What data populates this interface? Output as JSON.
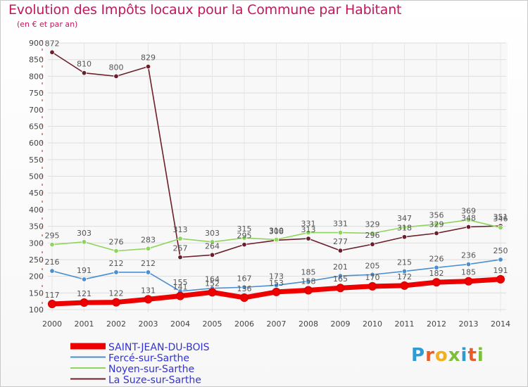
{
  "title": "Evolution des Impôts locaux pour la Commune par Habitant",
  "subtitle": "(en € et par an)",
  "logo": {
    "text": "Proxiti",
    "colors": [
      "#2e9bd6",
      "#e85b2a",
      "#f2b01e",
      "#7bbf3a",
      "#2e9bd6",
      "#e85b2a",
      "#7bbf3a"
    ]
  },
  "chart_data": {
    "type": "line",
    "title": "Evolution des Impôts locaux pour la Commune par Habitant",
    "subtitle": "(en € et par an)",
    "xlabel": "",
    "ylabel": "",
    "x": [
      "2000",
      "2001",
      "2002",
      "2003",
      "2004",
      "2005",
      "2006",
      "2007",
      "2008",
      "2009",
      "2010",
      "2011",
      "2012",
      "2013",
      "2014"
    ],
    "ylim": [
      100,
      900
    ],
    "yticks": [
      "100",
      "150",
      "200",
      "250",
      "300",
      "350",
      "400",
      "450",
      "500",
      "550",
      "600",
      "650",
      "700",
      "750",
      "800",
      "850",
      "900"
    ],
    "grid": true,
    "legend_position": "bottom-left",
    "series": [
      {
        "name": "SAINT-JEAN-DU-BOIS",
        "color": "#ee0000",
        "values": [
          117,
          121,
          122,
          131,
          141,
          152,
          136,
          153,
          158,
          165,
          170,
          172,
          182,
          185,
          191
        ]
      },
      {
        "name": "Fercé-sur-Sarthe",
        "color": "#4a8fd0",
        "values": [
          216,
          191,
          212,
          212,
          155,
          164,
          167,
          173,
          185,
          201,
          205,
          215,
          226,
          236,
          250
        ]
      },
      {
        "name": "Noyen-sur-Sarthe",
        "color": "#8fd45c",
        "values": [
          295,
          303,
          276,
          283,
          313,
          303,
          315,
          310,
          331,
          331,
          329,
          347,
          356,
          369,
          346
        ]
      },
      {
        "name": "La Suze-sur-Sarthe",
        "color": "#6b1f2a",
        "values": [
          872,
          810,
          800,
          829,
          257,
          264,
          295,
          308,
          313,
          277,
          296,
          318,
          329,
          348,
          351
        ]
      }
    ],
    "data_labels": [
      [
        "117",
        "121",
        "122",
        "131",
        "141",
        "152",
        "136",
        "153",
        "158",
        "165",
        "170",
        "172",
        "182",
        "185",
        "191"
      ],
      [
        "216",
        "191",
        "212",
        "212",
        "155",
        "164",
        "167",
        "173",
        "185",
        "201",
        "205",
        "215",
        "226",
        "236",
        "250"
      ],
      [
        "295",
        "303",
        "276",
        "283",
        "313",
        "303",
        "315",
        "310",
        "331",
        "331",
        "329",
        "347",
        "356",
        "369",
        "346"
      ],
      [
        "872",
        "810",
        "800",
        "829",
        "257",
        "264",
        "295",
        "308",
        "313",
        "277",
        "296",
        "318",
        "329",
        "348",
        "351"
      ]
    ]
  }
}
